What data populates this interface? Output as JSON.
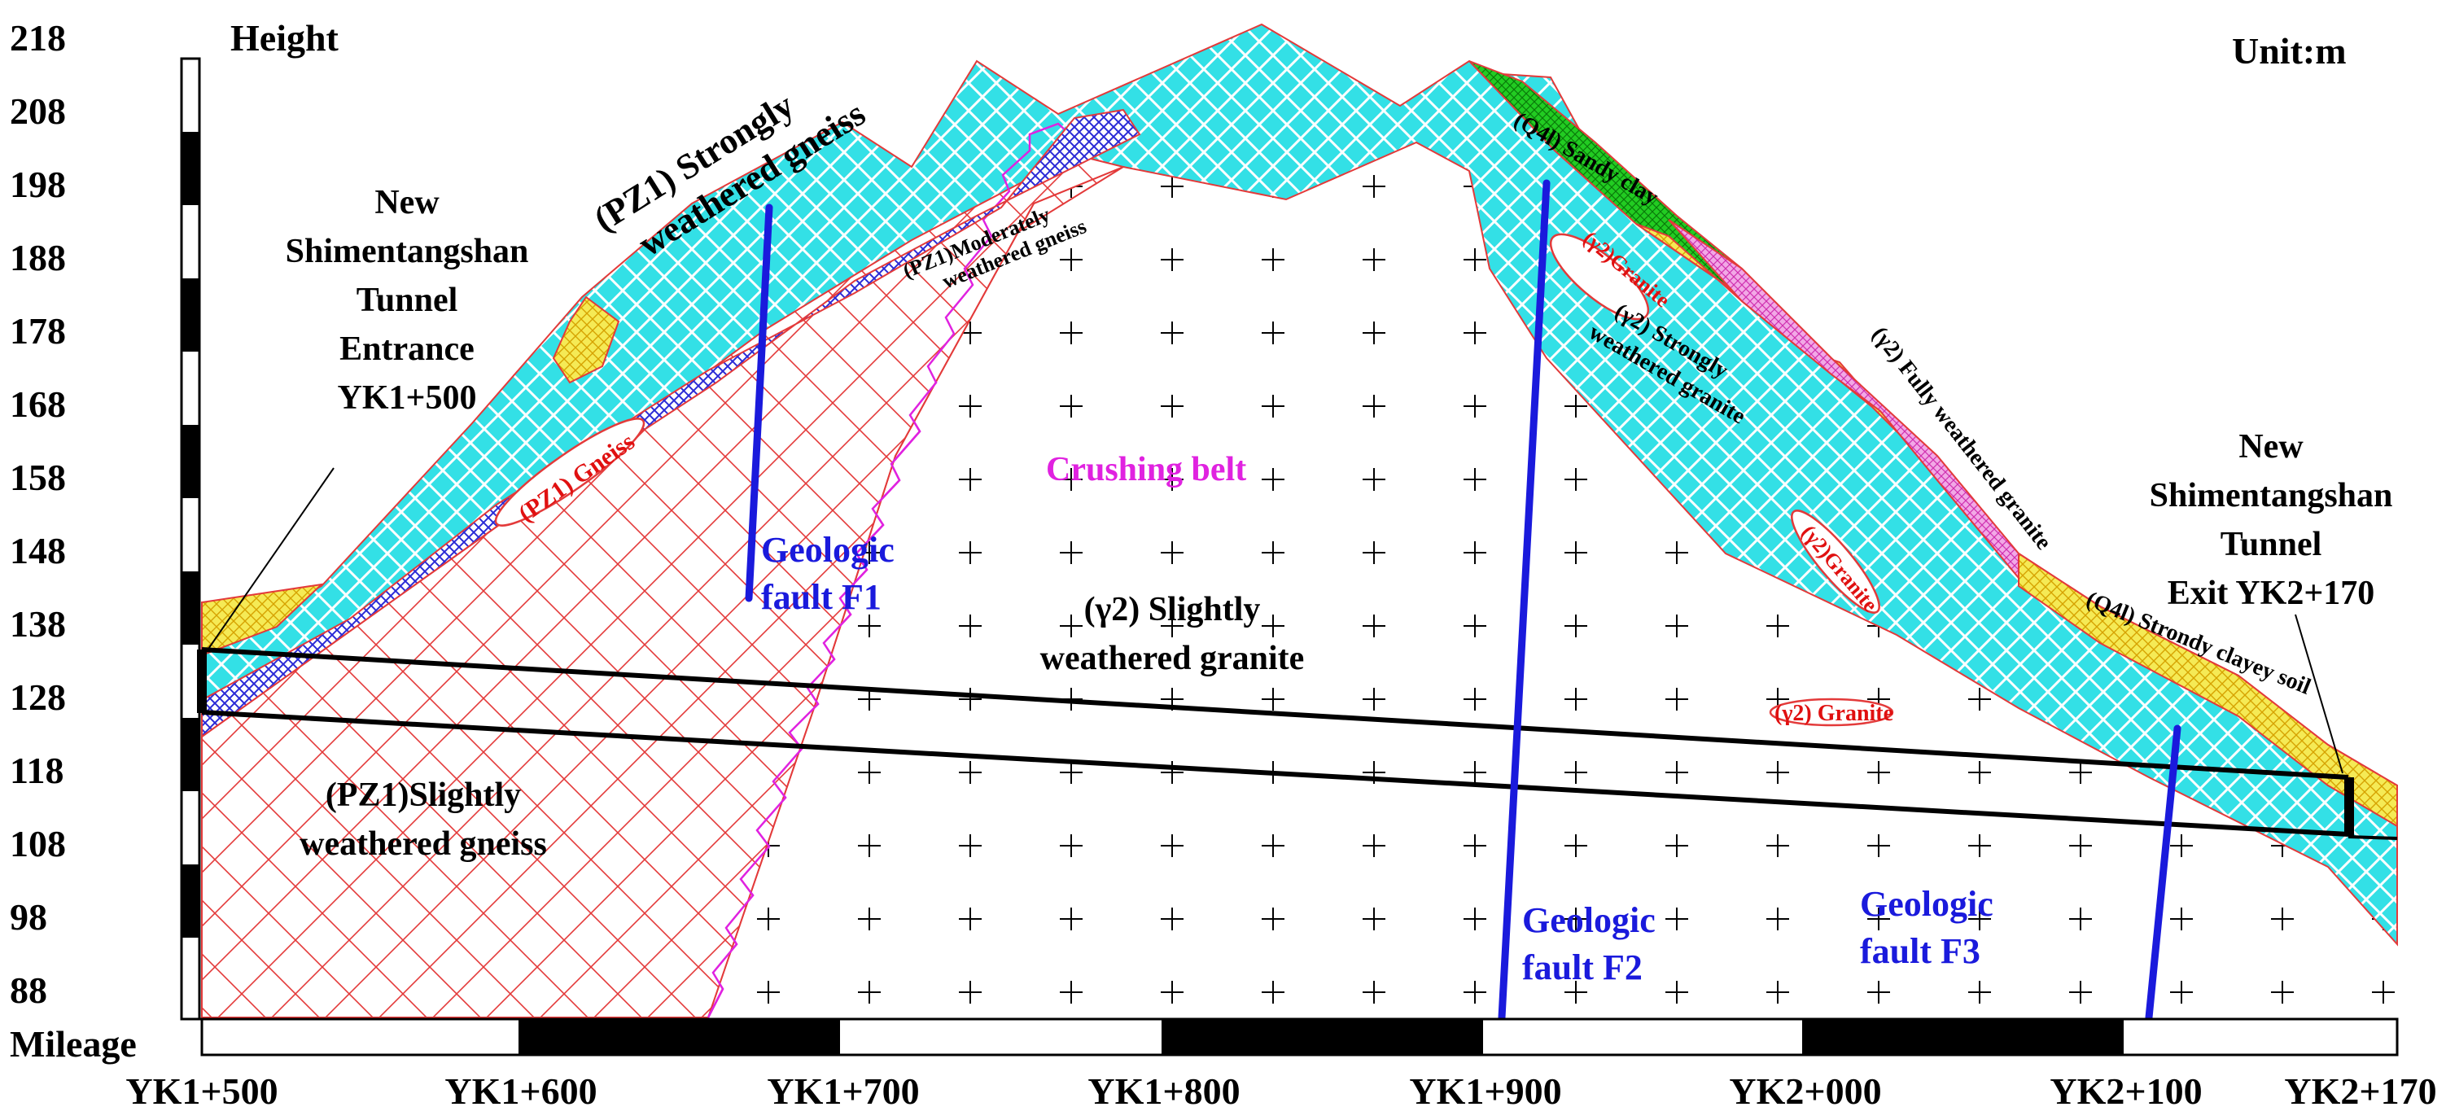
{
  "header": {
    "height_label": "Height",
    "unit_label": "Unit:m",
    "mileage_label": "Mileage"
  },
  "height_ticks": [
    "218",
    "208",
    "198",
    "188",
    "178",
    "168",
    "158",
    "148",
    "138",
    "128",
    "118",
    "108",
    "98",
    "88"
  ],
  "mileage_ticks": [
    "YK1+500",
    "YK1+600",
    "YK1+700",
    "YK1+800",
    "YK1+900",
    "YK2+000",
    "YK2+100",
    "YK2+170"
  ],
  "labels": {
    "entrance": [
      "New",
      "Shimentangshan",
      "Tunnel",
      "Entrance",
      "YK1+500"
    ],
    "exit": [
      "New",
      "Shimentangshan",
      "Tunnel",
      "Exit YK2+170"
    ],
    "pz1_strong": [
      "(PZ1) Strongly",
      "weathered gneiss"
    ],
    "pz1_moderate": [
      "(PZ1)Moderately",
      "weathered gneiss"
    ],
    "pz1_gneiss_lens": "(PZ1) Gneiss",
    "pz1_slight": [
      "(PZ1)Slightly",
      "weathered gneiss"
    ],
    "crushing_belt": "Crushing belt",
    "granite_slight": [
      "(γ2) Slightly",
      "weathered granite"
    ],
    "q4_sandy": "(Q4l) Sandy clay",
    "g2_granite_a": "(γ2)Granite",
    "g2_strong": [
      "(γ2) Strongly",
      "weathered granite"
    ],
    "g2_full": "(γ2) Fully weathered granite",
    "g2_granite_b": "(γ2)Granite",
    "g2_granite_c": "(γ2) Granite",
    "q4_clayey": "(Q4l) Strondy clayey soil",
    "fault_f1": [
      "Geologic",
      "fault F1"
    ],
    "fault_f2": [
      "Geologic",
      "fault F2"
    ],
    "fault_f3": [
      "Geologic",
      "fault F3"
    ]
  },
  "colors": {
    "strong_gneiss": "#33e0e6",
    "moderate_gneiss": "#2a2ad6",
    "slight_gneiss": "#e33a3a",
    "crushing_belt": "#e022e0",
    "sandy_clay": "#22cc22",
    "yellow_soil": "#f2e23a",
    "fully_weathered": "#e85cc8",
    "fault": "#1a1adc",
    "granite_label": "#e01010"
  }
}
